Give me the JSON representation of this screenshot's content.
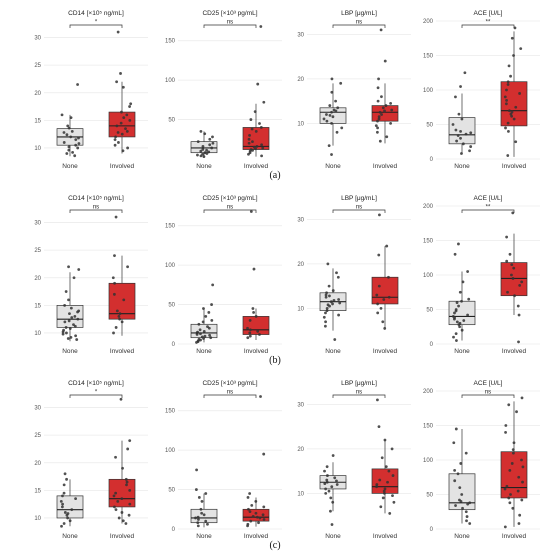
{
  "colors": {
    "none_box": "#e3e3e3",
    "involved_box": "#d32f2f",
    "point": "#333333",
    "grid": "#ebebeb"
  },
  "panels": [
    {
      "label": "(a)"
    },
    {
      "label": "(b)"
    },
    {
      "label": "(c)"
    }
  ],
  "chart_data": [
    {
      "type": "box",
      "panel": "a",
      "title": "CD14 [×10⁵ ng/mL]",
      "categories": [
        "None",
        "Involved"
      ],
      "ylim": [
        8,
        33
      ],
      "yticks": [
        10,
        15,
        20,
        25,
        30
      ],
      "significance": "*",
      "series": [
        {
          "name": "None",
          "q1": 10.5,
          "median": 12,
          "q3": 13.5,
          "whisker_low": 8.5,
          "whisker_high": 16,
          "points": [
            21.5,
            16,
            15.5,
            14,
            13.6,
            13,
            12.8,
            12.4,
            12,
            11.8,
            11.5,
            11,
            10.8,
            10.5,
            10.2,
            10,
            9.6,
            9.2,
            9,
            8.6
          ]
        },
        {
          "name": "Involved",
          "q1": 12,
          "median": 14,
          "q3": 16.5,
          "whisker_low": 9,
          "whisker_high": 22,
          "points": [
            31,
            23.5,
            22,
            21,
            18,
            17.5,
            16.5,
            16,
            15.5,
            15,
            14.5,
            14,
            13.5,
            13,
            12.8,
            12.5,
            12,
            11.5,
            11,
            10.5,
            10,
            9.5
          ]
        }
      ]
    },
    {
      "type": "box",
      "panel": "a",
      "title": "CD25 [×10³ pg/mL]",
      "categories": [
        "None",
        "Involved"
      ],
      "ylim": [
        0,
        175
      ],
      "yticks": [
        50,
        100,
        150
      ],
      "significance": "ns",
      "series": [
        {
          "name": "None",
          "q1": 8,
          "median": 14,
          "q3": 22,
          "whisker_low": 3,
          "whisker_high": 35,
          "points": [
            35,
            32,
            28,
            25,
            22,
            20,
            18,
            16,
            14,
            12,
            11,
            10,
            9,
            8,
            7,
            6,
            5,
            4,
            3
          ]
        },
        {
          "name": "Involved",
          "q1": 12,
          "median": 16,
          "q3": 40,
          "whisker_low": 3,
          "whisker_high": 70,
          "points": [
            168,
            95,
            72,
            60,
            50,
            45,
            40,
            38,
            35,
            30,
            25,
            22,
            20,
            18,
            16,
            15,
            14,
            13,
            12,
            11,
            10,
            8,
            6,
            4
          ]
        }
      ]
    },
    {
      "type": "box",
      "panel": "a",
      "title": "LBP [μg/mL]",
      "categories": [
        "None",
        "Involved"
      ],
      "ylim": [
        2,
        33
      ],
      "yticks": [
        10,
        20,
        30
      ],
      "significance": "ns",
      "series": [
        {
          "name": "None",
          "q1": 10,
          "median": 12.5,
          "q3": 13.5,
          "whisker_low": 5,
          "whisker_high": 19,
          "points": [
            20,
            19,
            17,
            15,
            14,
            13.5,
            13,
            12.8,
            12.5,
            12,
            11.8,
            11.5,
            11,
            10.5,
            10,
            9,
            8,
            5,
            3
          ]
        },
        {
          "name": "Involved",
          "q1": 10.5,
          "median": 12.5,
          "q3": 14,
          "whisker_low": 5.5,
          "whisker_high": 19,
          "points": [
            31,
            24,
            20,
            18,
            16,
            15,
            14.5,
            14,
            13.5,
            13,
            12.8,
            12.5,
            12,
            11.5,
            11,
            10.5,
            10,
            9.5,
            9,
            8,
            7,
            6
          ]
        }
      ]
    },
    {
      "type": "box",
      "panel": "a",
      "title": "ACE [U/L]",
      "categories": [
        "None",
        "Involved"
      ],
      "ylim": [
        0,
        200
      ],
      "yticks": [
        0,
        50,
        100,
        150,
        200
      ],
      "significance": "**",
      "series": [
        {
          "name": "None",
          "q1": 22,
          "median": 35,
          "q3": 60,
          "whisker_low": 8,
          "whisker_high": 95,
          "points": [
            125,
            105,
            90,
            65,
            58,
            50,
            42,
            40,
            38,
            36,
            34,
            30,
            26,
            22,
            18,
            12,
            8
          ]
        },
        {
          "name": "Involved",
          "q1": 48,
          "median": 70,
          "q3": 112,
          "whisker_low": 3,
          "whisker_high": 185,
          "points": [
            190,
            175,
            160,
            150,
            135,
            120,
            112,
            108,
            100,
            95,
            90,
            85,
            80,
            75,
            70,
            68,
            65,
            62,
            58,
            52,
            45,
            40,
            25,
            5
          ]
        }
      ]
    },
    {
      "type": "box",
      "panel": "b",
      "title": "CD14 [×10⁵ ng/mL]",
      "categories": [
        "None",
        "Involved"
      ],
      "ylim": [
        8,
        33
      ],
      "yticks": [
        10,
        15,
        20,
        25,
        30
      ],
      "significance": "ns",
      "series": [
        {
          "name": "None",
          "q1": 11,
          "median": 12.5,
          "q3": 15,
          "whisker_low": 8.5,
          "whisker_high": 21,
          "points": [
            22,
            21.5,
            20,
            17.5,
            16,
            15,
            14.5,
            14,
            13.8,
            13.5,
            13,
            12.8,
            12.5,
            12.2,
            12,
            11.5,
            11.2,
            11,
            10.8,
            10.5,
            10.2,
            10,
            9.8,
            9.5,
            9.2,
            9,
            8.8
          ]
        },
        {
          "name": "Involved",
          "q1": 12.5,
          "median": 13.5,
          "q3": 19,
          "whisker_low": 9.5,
          "whisker_high": 24,
          "points": [
            31,
            24,
            22,
            20,
            19,
            17,
            16,
            14,
            13.5,
            13,
            12.5,
            12,
            11,
            10
          ]
        }
      ]
    },
    {
      "type": "box",
      "panel": "b",
      "title": "CD25 [×10³ pg/mL]",
      "categories": [
        "None",
        "Involved"
      ],
      "ylim": [
        0,
        175
      ],
      "yticks": [
        0,
        50,
        100,
        150
      ],
      "significance": "ns",
      "series": [
        {
          "name": "None",
          "q1": 8,
          "median": 14,
          "q3": 25,
          "whisker_low": 2,
          "whisker_high": 45,
          "points": [
            75,
            50,
            45,
            40,
            35,
            30,
            28,
            25,
            22,
            20,
            18,
            16,
            15,
            14,
            13,
            12,
            11,
            10,
            9,
            8,
            7,
            6,
            5,
            4,
            3,
            2
          ]
        },
        {
          "name": "Involved",
          "q1": 12,
          "median": 18,
          "q3": 35,
          "whisker_low": 5,
          "whisker_high": 45,
          "points": [
            168,
            95,
            45,
            40,
            35,
            30,
            20,
            18,
            16,
            14,
            12,
            10,
            8
          ]
        }
      ]
    },
    {
      "type": "box",
      "panel": "b",
      "title": "LBP [μg/mL]",
      "categories": [
        "None",
        "Involved"
      ],
      "ylim": [
        2,
        33
      ],
      "yticks": [
        10,
        20,
        30
      ],
      "significance": "ns",
      "series": [
        {
          "name": "None",
          "q1": 9.5,
          "median": 11.5,
          "q3": 13.5,
          "whisker_low": 5,
          "whisker_high": 19,
          "points": [
            20,
            18,
            17,
            15,
            14,
            13.5,
            13,
            12.8,
            12.5,
            12,
            11.8,
            11.5,
            11.2,
            11,
            10.8,
            10.5,
            10,
            9.5,
            9,
            8.5,
            8,
            7,
            6,
            3
          ]
        },
        {
          "name": "Involved",
          "q1": 11,
          "median": 12.5,
          "q3": 17,
          "whisker_low": 5.5,
          "whisker_high": 24,
          "points": [
            31,
            24,
            22,
            17,
            15,
            13,
            12.5,
            12,
            11,
            10,
            9,
            7,
            5.5
          ]
        }
      ]
    },
    {
      "type": "box",
      "panel": "b",
      "title": "ACE [U/L]",
      "categories": [
        "None",
        "Involved"
      ],
      "ylim": [
        0,
        200
      ],
      "yticks": [
        0,
        50,
        100,
        150,
        200
      ],
      "significance": "**",
      "series": [
        {
          "name": "None",
          "q1": 28,
          "median": 40,
          "q3": 62,
          "whisker_low": 5,
          "whisker_high": 105,
          "points": [
            145,
            130,
            105,
            90,
            75,
            65,
            62,
            60,
            55,
            50,
            48,
            45,
            42,
            40,
            38,
            36,
            34,
            32,
            30,
            28,
            25,
            20,
            15,
            10,
            5
          ]
        },
        {
          "name": "Involved",
          "q1": 70,
          "median": 95,
          "q3": 118,
          "whisker_low": 42,
          "whisker_high": 160,
          "points": [
            190,
            155,
            130,
            120,
            115,
            110,
            100,
            95,
            90,
            85,
            75,
            70,
            55,
            42,
            3
          ]
        }
      ]
    },
    {
      "type": "box",
      "panel": "c",
      "title": "CD14 [×10⁵ ng/mL]",
      "categories": [
        "None",
        "Involved"
      ],
      "ylim": [
        8,
        33
      ],
      "yticks": [
        10,
        15,
        20,
        25,
        30
      ],
      "significance": "*",
      "series": [
        {
          "name": "None",
          "q1": 10,
          "median": 11.5,
          "q3": 14,
          "whisker_low": 8.5,
          "whisker_high": 17,
          "points": [
            18,
            17,
            16,
            14.5,
            14,
            13.5,
            13,
            12.5,
            12,
            11.5,
            11,
            10.8,
            10.5,
            10,
            9.5,
            9,
            8.5
          ]
        },
        {
          "name": "Involved",
          "q1": 12,
          "median": 13.5,
          "q3": 17,
          "whisker_low": 9,
          "whisker_high": 24,
          "points": [
            31.5,
            24,
            22.5,
            21,
            19,
            17,
            16.5,
            16,
            15,
            14.5,
            14,
            13.5,
            13,
            12.5,
            12,
            11.5,
            11,
            10.5,
            10,
            9.5,
            9
          ]
        }
      ]
    },
    {
      "type": "box",
      "panel": "c",
      "title": "CD25 [×10³ pg/mL]",
      "categories": [
        "None",
        "Involved"
      ],
      "ylim": [
        0,
        175
      ],
      "yticks": [
        0,
        50,
        100,
        150
      ],
      "significance": "ns",
      "series": [
        {
          "name": "None",
          "q1": 8,
          "median": 14,
          "q3": 25,
          "whisker_low": 2,
          "whisker_high": 45,
          "points": [
            75,
            50,
            45,
            40,
            35,
            25,
            20,
            18,
            15,
            14,
            12,
            10,
            8,
            6,
            4
          ]
        },
        {
          "name": "Involved",
          "q1": 10,
          "median": 15,
          "q3": 25,
          "whisker_low": 3,
          "whisker_high": 40,
          "points": [
            168,
            95,
            45,
            40,
            35,
            30,
            28,
            25,
            22,
            20,
            18,
            16,
            15,
            14,
            12,
            10,
            8,
            6,
            4
          ]
        }
      ]
    },
    {
      "type": "box",
      "panel": "c",
      "title": "LBP [μg/mL]",
      "categories": [
        "None",
        "Involved"
      ],
      "ylim": [
        2,
        33
      ],
      "yticks": [
        10,
        20,
        30
      ],
      "significance": "ns",
      "series": [
        {
          "name": "None",
          "q1": 11,
          "median": 12.5,
          "q3": 14,
          "whisker_low": 6,
          "whisker_high": 17,
          "points": [
            18.5,
            16,
            15,
            14,
            13.5,
            13,
            12.8,
            12.5,
            12.2,
            12,
            11.5,
            11,
            10.5,
            10,
            9,
            8,
            6,
            3
          ]
        },
        {
          "name": "Involved",
          "q1": 10,
          "median": 11.5,
          "q3": 15.5,
          "whisker_low": 5.5,
          "whisker_high": 22,
          "points": [
            31,
            25,
            22,
            20,
            18,
            16,
            15,
            14,
            13,
            12.5,
            12,
            11.5,
            11,
            10.5,
            10,
            9.5,
            9,
            8,
            7,
            5.5
          ]
        }
      ]
    },
    {
      "type": "box",
      "panel": "c",
      "title": "ACE [U/L]",
      "categories": [
        "None",
        "Involved"
      ],
      "ylim": [
        0,
        200
      ],
      "yticks": [
        0,
        50,
        100,
        150,
        200
      ],
      "significance": "ns",
      "series": [
        {
          "name": "None",
          "q1": 28,
          "median": 38,
          "q3": 80,
          "whisker_low": 8,
          "whisker_high": 145,
          "points": [
            145,
            125,
            110,
            95,
            85,
            80,
            70,
            60,
            50,
            42,
            40,
            38,
            36,
            34,
            30,
            25,
            18,
            12,
            8
          ]
        },
        {
          "name": "Involved",
          "q1": 45,
          "median": 60,
          "q3": 112,
          "whisker_low": 3,
          "whisker_high": 185,
          "points": [
            190,
            180,
            170,
            150,
            140,
            125,
            115,
            110,
            100,
            95,
            90,
            85,
            75,
            68,
            62,
            58,
            55,
            50,
            45,
            42,
            38,
            30,
            20,
            8,
            3
          ]
        }
      ]
    }
  ]
}
